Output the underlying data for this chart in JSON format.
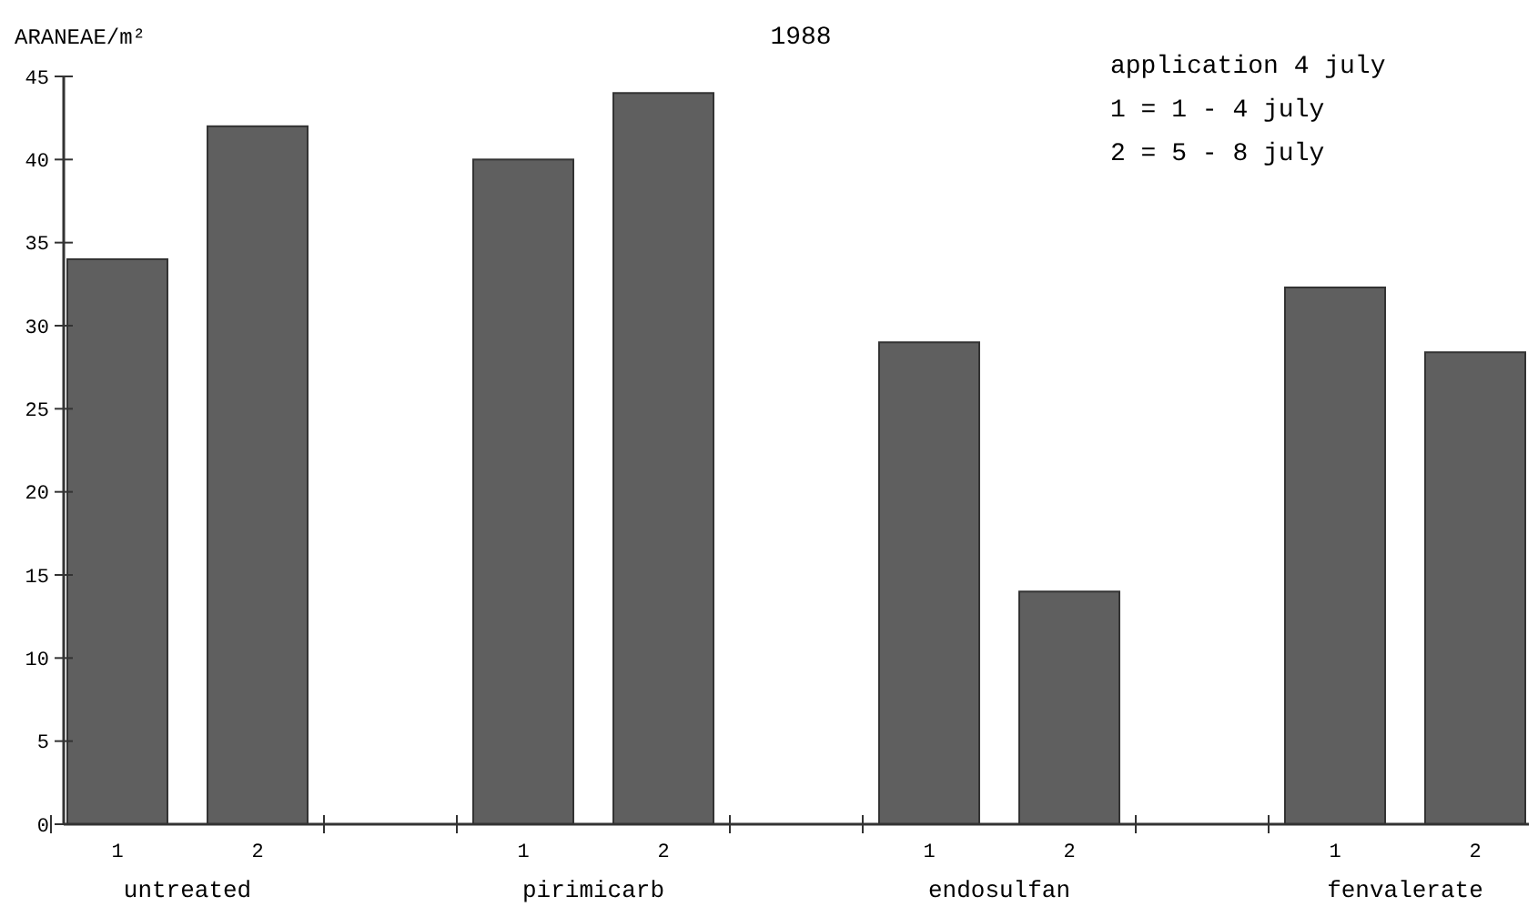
{
  "chart_data": {
    "type": "bar",
    "title": "1988",
    "ylabel": "ARANEAE/m²",
    "categories": [
      "untreated",
      "pirimicarb",
      "endosulfan",
      "fenvalerate"
    ],
    "series": [
      {
        "name": "1",
        "color": "#5f5f5f",
        "values": [
          34,
          40,
          29,
          32.3
        ]
      },
      {
        "name": "2",
        "color": "#5f5f5f",
        "values": [
          42,
          44,
          14,
          28.4
        ]
      }
    ],
    "ylim": [
      0,
      45
    ],
    "yticks": [
      0,
      5,
      10,
      15,
      20,
      25,
      30,
      35,
      40,
      45
    ],
    "grid": false,
    "annotations": [
      "application 4 july",
      "1 = 1 - 4 july",
      "2 = 5 - 8 july"
    ]
  }
}
